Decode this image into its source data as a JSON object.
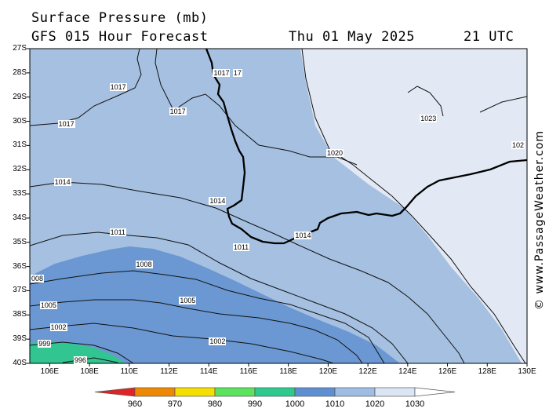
{
  "header": {
    "title": "Surface Pressure (mb)",
    "model": "GFS 015 Hour Forecast",
    "date": "Thu 01 May 2025",
    "time": "21 UTC"
  },
  "axes": {
    "y_labels": [
      "27S",
      "28S",
      "29S",
      "30S",
      "31S",
      "32S",
      "33S",
      "34S",
      "35S",
      "36S",
      "37S",
      "38S",
      "39S",
      "40S"
    ],
    "x_labels": [
      "106E",
      "108E",
      "110E",
      "112E",
      "114E",
      "116E",
      "118E",
      "120E",
      "122E",
      "124E",
      "126E",
      "128E",
      "130E"
    ]
  },
  "map": {
    "lon_range": [
      105,
      130
    ],
    "lat_range": [
      -27,
      -40
    ],
    "fill_colors": {
      "1030": "#e3e9f4",
      "1020": "#a5c0e0",
      "1010": "#6b98d2",
      "1000": "#33c591"
    },
    "isobar_labels": [
      {
        "text": "1017",
        "lon": 112.4,
        "lat": -29.6
      },
      {
        "text": "1017",
        "lon": 109.4,
        "lat": -28.6
      },
      {
        "text": "1017",
        "lon": 106.8,
        "lat": -30.1
      },
      {
        "text": "1017",
        "lon": 114.6,
        "lat": -28.0
      },
      {
        "text": "17",
        "lon": 115.6,
        "lat": -28.0
      },
      {
        "text": "1023",
        "lon": 125.0,
        "lat": -29.9
      },
      {
        "text": "1020",
        "lon": 120.3,
        "lat": -31.3
      },
      {
        "text": "102",
        "lon": 129.8,
        "lat": -31.0
      },
      {
        "text": "1014",
        "lon": 106.6,
        "lat": -32.5
      },
      {
        "text": "1014",
        "lon": 114.4,
        "lat": -33.3
      },
      {
        "text": "1014",
        "lon": 118.7,
        "lat": -34.7
      },
      {
        "text": "1011",
        "lon": 109.4,
        "lat": -34.6
      },
      {
        "text": "1011",
        "lon": 115.6,
        "lat": -35.2
      },
      {
        "text": "1008",
        "lon": 110.7,
        "lat": -35.9
      },
      {
        "text": "008",
        "lon": 105.4,
        "lat": -36.5
      },
      {
        "text": "1005",
        "lon": 105.9,
        "lat": -37.6
      },
      {
        "text": "1005",
        "lon": 112.9,
        "lat": -37.4
      },
      {
        "text": "1002",
        "lon": 106.4,
        "lat": -38.5
      },
      {
        "text": "1002",
        "lon": 114.4,
        "lat": -39.1
      },
      {
        "text": "999",
        "lon": 105.8,
        "lat": -39.2
      },
      {
        "text": "996",
        "lon": 107.6,
        "lat": -39.9
      }
    ]
  },
  "colorbar": {
    "colors": [
      "#e02424",
      "#ee8800",
      "#f5df00",
      "#5be35e",
      "#2fc98e",
      "#5f8fd3",
      "#9fbde2",
      "#dbe6f4",
      "#ffffff"
    ],
    "labels": [
      "960",
      "970",
      "980",
      "990",
      "1000",
      "1010",
      "1020",
      "1030"
    ]
  },
  "credit": "© www.PassageWeather.com"
}
